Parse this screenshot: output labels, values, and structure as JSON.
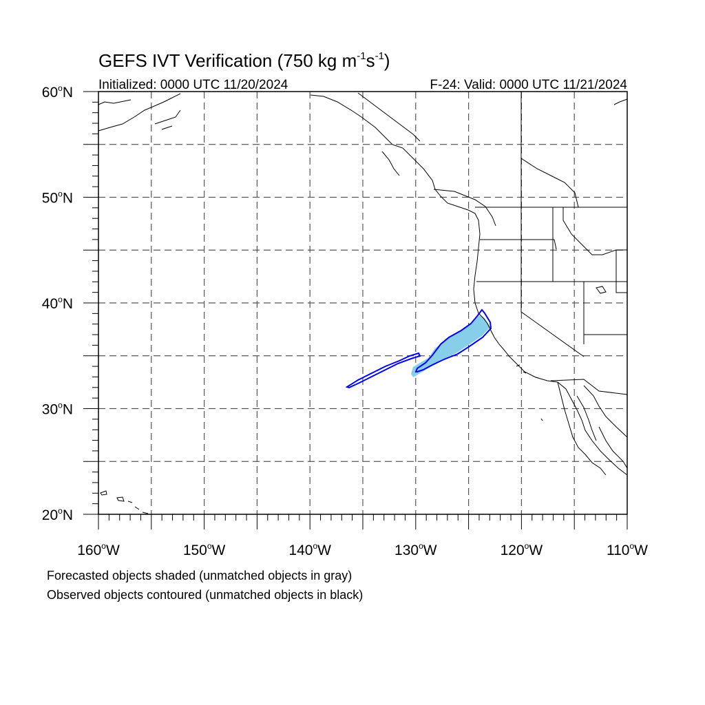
{
  "header": {
    "title_main": "GEFS IVT Verification (750 kg m",
    "title_exp1": "-1",
    "title_mid": "s",
    "title_exp2": "-1",
    "title_close": ")",
    "initialized": "Initialized: 0000 UTC 11/20/2024",
    "valid": "F-24: Valid: 0000 UTC 11/21/2024"
  },
  "axes": {
    "lat_labels": [
      "20",
      "30",
      "40",
      "50",
      "60"
    ],
    "lat_suffix": "N",
    "lon_labels": [
      "160",
      "150",
      "140",
      "130",
      "120",
      "110"
    ],
    "lon_suffix": "W",
    "lat_range": [
      20,
      60
    ],
    "lon_range": [
      -160,
      -110
    ],
    "gridline_step_deg": 5,
    "grid": "dashed"
  },
  "legend": {
    "line1": "Forecasted objects shaded (unmatched objects in gray)",
    "line2": "Observed objects contoured (unmatched objects in black)"
  },
  "colors": {
    "forecast_fill": "#87ceeb",
    "observed_contour": "#0000ff",
    "coastline": "#000000",
    "grid": "#555555"
  }
}
